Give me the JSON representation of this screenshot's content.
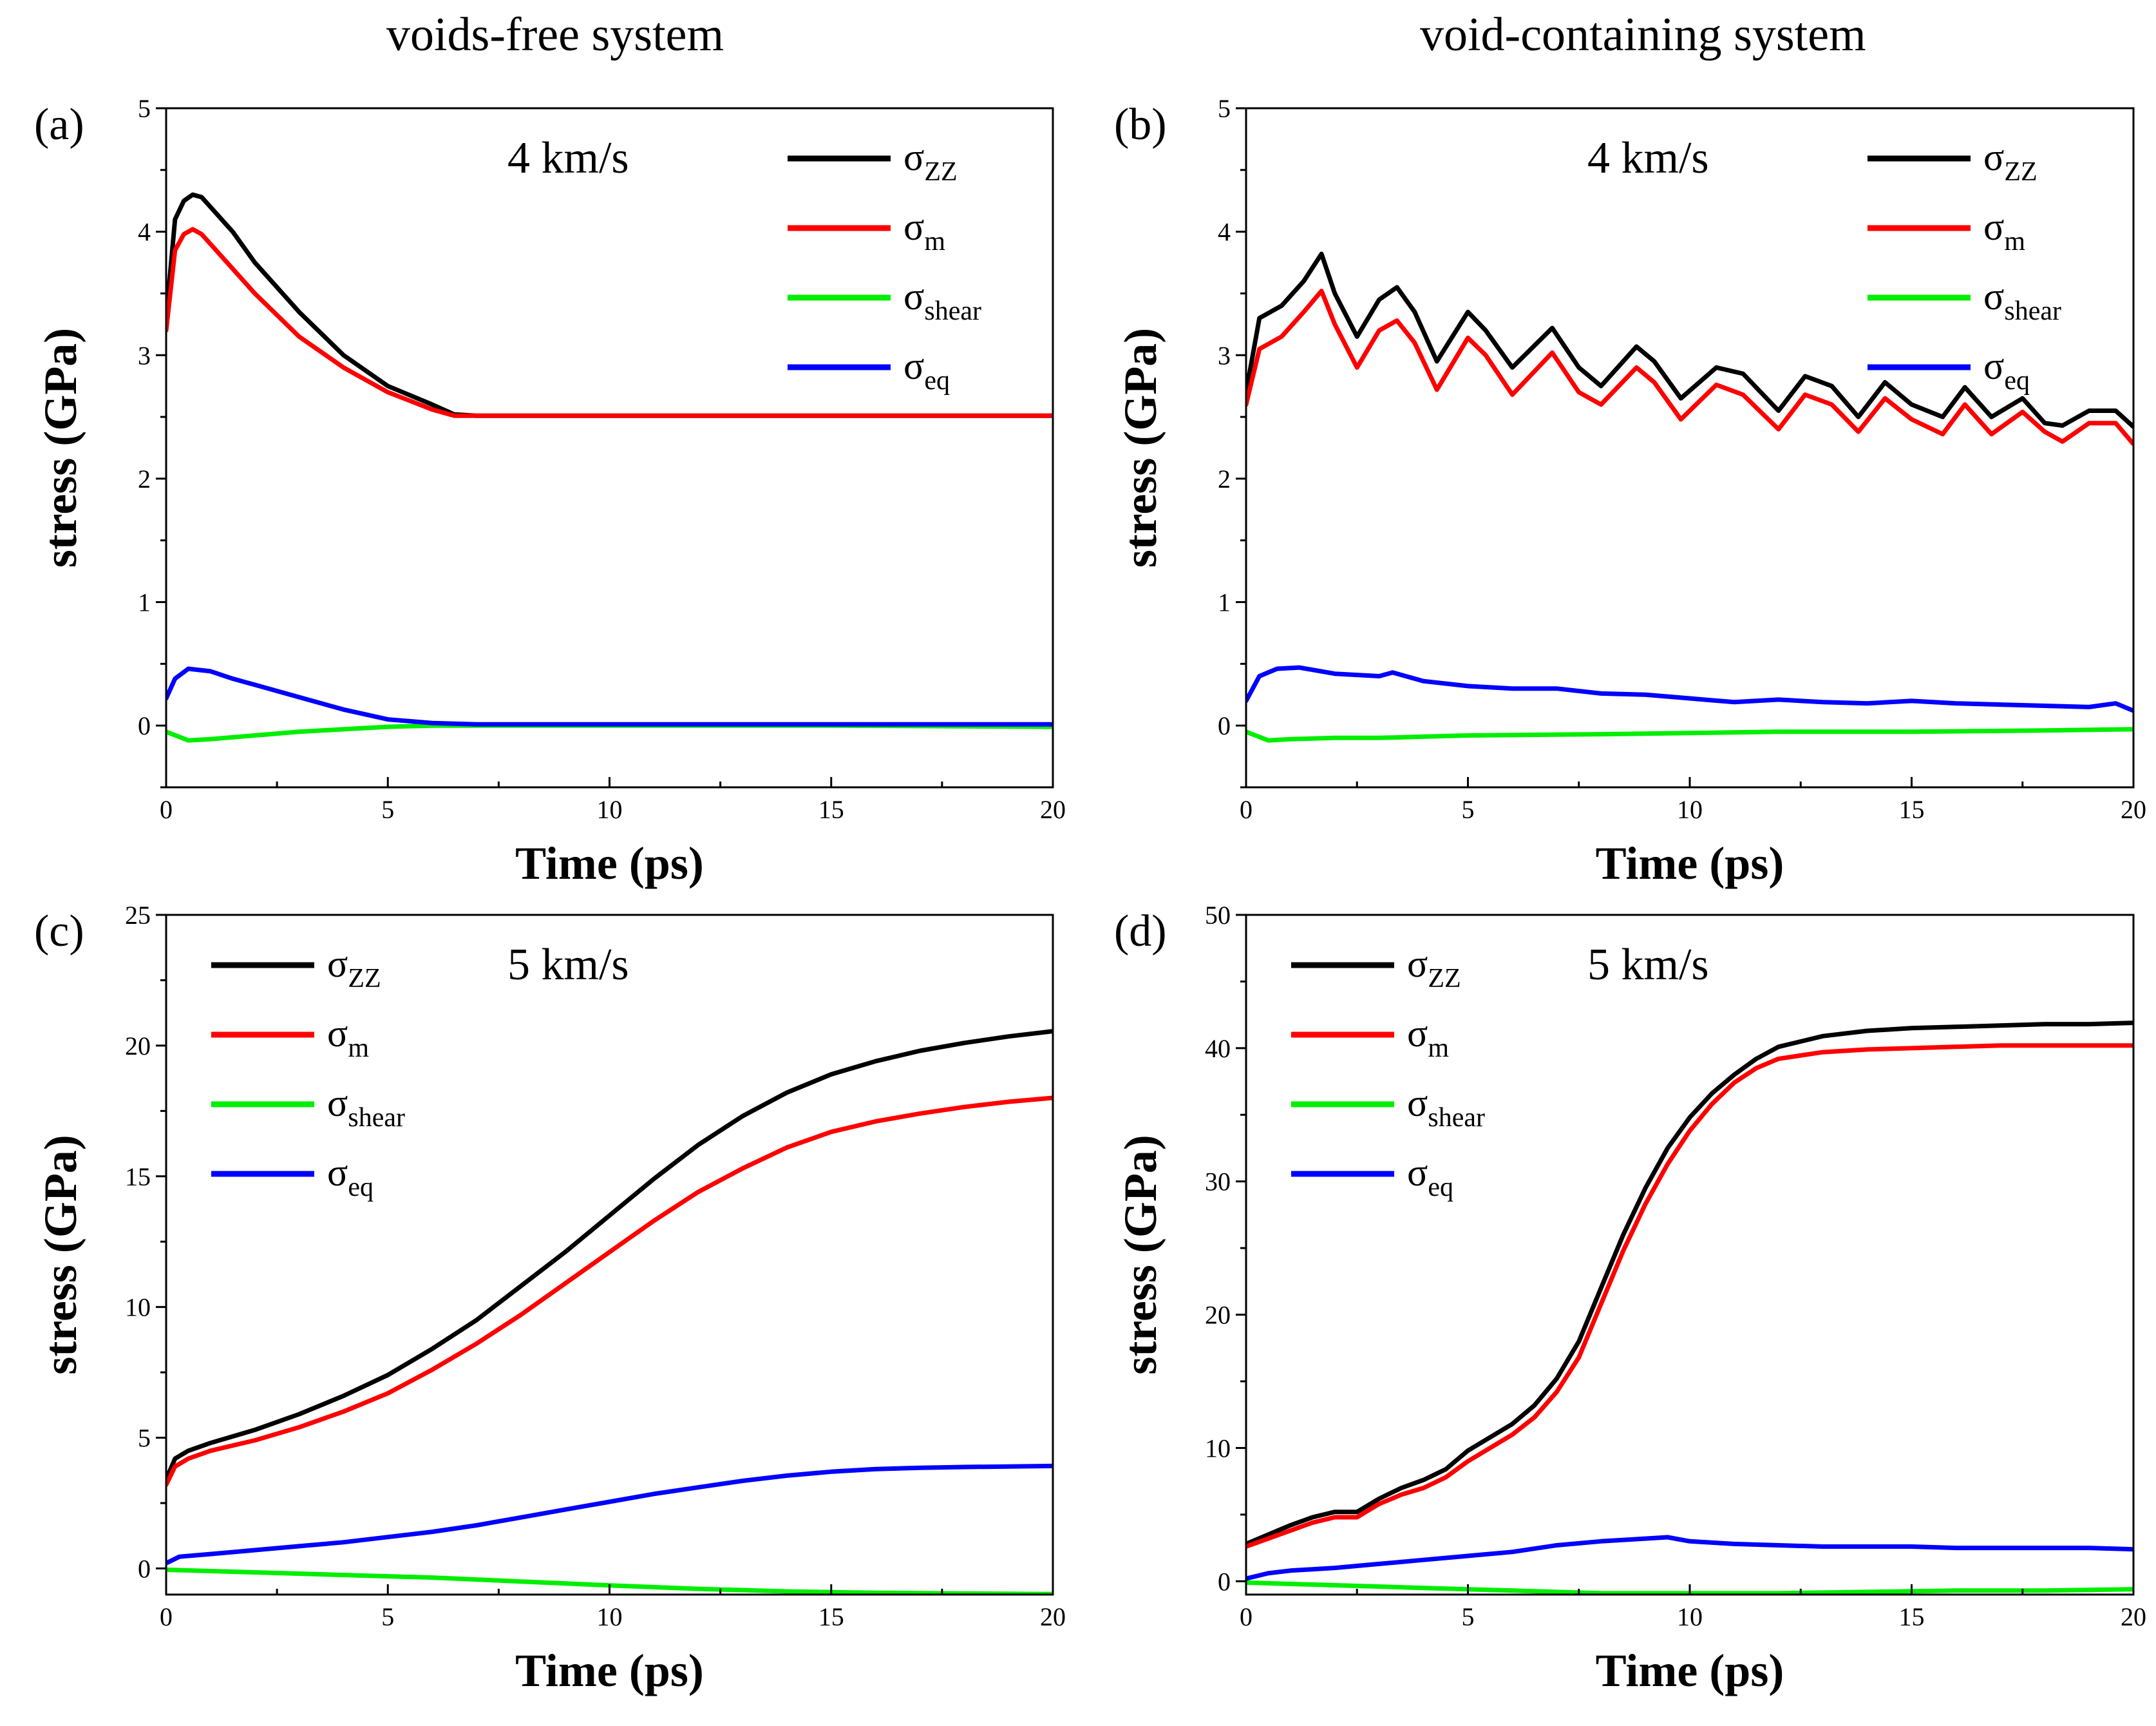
{
  "column_titles": [
    "voids-free system",
    "void-containing system"
  ],
  "chart_data": [
    {
      "type": "line",
      "panel_label": "(a)",
      "annotation": "4 km/s",
      "xlabel": "Time (ps)",
      "ylabel": "stress (GPa)",
      "xlim": [
        0,
        20
      ],
      "ylim": [
        -0.5,
        5
      ],
      "xticks": [
        0,
        5,
        10,
        15,
        20
      ],
      "yticks": [
        0,
        1,
        2,
        3,
        4,
        5
      ],
      "legend_position": "top-right",
      "series": [
        {
          "name": "σ",
          "subscript": "ZZ",
          "color": "#000000",
          "x": [
            0,
            0.2,
            0.4,
            0.6,
            0.8,
            1.0,
            1.5,
            2.0,
            3.0,
            4.0,
            5.0,
            6.0,
            6.5,
            7.0,
            10,
            15,
            20
          ],
          "y": [
            3.3,
            4.1,
            4.25,
            4.3,
            4.28,
            4.2,
            4.0,
            3.75,
            3.35,
            3.0,
            2.75,
            2.6,
            2.52,
            2.51,
            2.51,
            2.51,
            2.51
          ]
        },
        {
          "name": "σ",
          "subscript": "m",
          "color": "#ff0000",
          "x": [
            0,
            0.2,
            0.4,
            0.6,
            0.8,
            1.0,
            1.5,
            2.0,
            3.0,
            4.0,
            5.0,
            6.0,
            6.5,
            7.0,
            10,
            15,
            20
          ],
          "y": [
            3.2,
            3.85,
            3.98,
            4.02,
            3.98,
            3.9,
            3.7,
            3.5,
            3.15,
            2.9,
            2.7,
            2.56,
            2.51,
            2.51,
            2.51,
            2.51,
            2.51
          ]
        },
        {
          "name": "σ",
          "subscript": "shear",
          "color": "#00ee00",
          "x": [
            0,
            0.5,
            1,
            2,
            3,
            4,
            5,
            6,
            10,
            15,
            20
          ],
          "y": [
            -0.05,
            -0.12,
            -0.11,
            -0.08,
            -0.05,
            -0.03,
            -0.01,
            0.0,
            0.0,
            0.0,
            -0.01
          ]
        },
        {
          "name": "σ",
          "subscript": "eq",
          "color": "#0000ff",
          "x": [
            0,
            0.2,
            0.5,
            1.0,
            1.5,
            2,
            3,
            4,
            5,
            6,
            7,
            10,
            15,
            20
          ],
          "y": [
            0.22,
            0.38,
            0.46,
            0.44,
            0.38,
            0.33,
            0.23,
            0.13,
            0.05,
            0.02,
            0.01,
            0.01,
            0.01,
            0.01
          ]
        }
      ]
    },
    {
      "type": "line",
      "panel_label": "(b)",
      "annotation": "4 km/s",
      "xlabel": "Time (ps)",
      "ylabel": "stress (GPa)",
      "xlim": [
        0,
        20
      ],
      "ylim": [
        -0.5,
        5
      ],
      "xticks": [
        0,
        5,
        10,
        15,
        20
      ],
      "yticks": [
        0,
        1,
        2,
        3,
        4,
        5
      ],
      "legend_position": "top-right",
      "series": [
        {
          "name": "σ",
          "subscript": "ZZ",
          "color": "#000000",
          "x": [
            0,
            0.3,
            0.8,
            1.3,
            1.7,
            2.0,
            2.5,
            3.0,
            3.4,
            3.8,
            4.3,
            5.0,
            5.4,
            6.0,
            6.9,
            7.5,
            8.0,
            8.8,
            9.2,
            9.8,
            10.6,
            11.2,
            12.0,
            12.6,
            13.2,
            13.8,
            14.4,
            15.0,
            15.7,
            16.2,
            16.8,
            17.5,
            18.0,
            18.4,
            19.0,
            19.6,
            20.0
          ],
          "y": [
            2.7,
            3.3,
            3.4,
            3.6,
            3.82,
            3.5,
            3.15,
            3.45,
            3.55,
            3.35,
            2.95,
            3.35,
            3.2,
            2.9,
            3.22,
            2.9,
            2.75,
            3.07,
            2.95,
            2.65,
            2.9,
            2.85,
            2.55,
            2.83,
            2.75,
            2.5,
            2.78,
            2.6,
            2.5,
            2.74,
            2.5,
            2.65,
            2.45,
            2.43,
            2.55,
            2.55,
            2.42
          ]
        },
        {
          "name": "σ",
          "subscript": "m",
          "color": "#ff0000",
          "x": [
            0,
            0.3,
            0.8,
            1.3,
            1.7,
            2.0,
            2.5,
            3.0,
            3.4,
            3.8,
            4.3,
            5.0,
            5.4,
            6.0,
            6.9,
            7.5,
            8.0,
            8.8,
            9.2,
            9.8,
            10.6,
            11.2,
            12.0,
            12.6,
            13.2,
            13.8,
            14.4,
            15.0,
            15.7,
            16.2,
            16.8,
            17.5,
            18.0,
            18.4,
            19.0,
            19.6,
            20.0
          ],
          "y": [
            2.6,
            3.05,
            3.15,
            3.35,
            3.52,
            3.25,
            2.9,
            3.2,
            3.28,
            3.1,
            2.72,
            3.14,
            3.0,
            2.68,
            3.02,
            2.7,
            2.6,
            2.9,
            2.78,
            2.48,
            2.76,
            2.68,
            2.4,
            2.68,
            2.6,
            2.38,
            2.65,
            2.48,
            2.36,
            2.6,
            2.36,
            2.54,
            2.38,
            2.3,
            2.45,
            2.45,
            2.28
          ]
        },
        {
          "name": "σ",
          "subscript": "shear",
          "color": "#00ee00",
          "x": [
            0,
            0.5,
            1,
            2,
            3,
            4,
            5,
            8,
            10,
            12,
            15,
            18,
            20
          ],
          "y": [
            -0.05,
            -0.12,
            -0.11,
            -0.1,
            -0.1,
            -0.09,
            -0.08,
            -0.07,
            -0.06,
            -0.05,
            -0.05,
            -0.04,
            -0.03
          ]
        },
        {
          "name": "σ",
          "subscript": "eq",
          "color": "#0000ff",
          "x": [
            0,
            0.3,
            0.7,
            1.2,
            2,
            3,
            3.3,
            4,
            5,
            6,
            7,
            8,
            9,
            10,
            11,
            12,
            13,
            14,
            15,
            16,
            17,
            18,
            19,
            19.6,
            20
          ],
          "y": [
            0.2,
            0.4,
            0.46,
            0.47,
            0.42,
            0.4,
            0.43,
            0.36,
            0.32,
            0.3,
            0.3,
            0.26,
            0.25,
            0.22,
            0.19,
            0.21,
            0.19,
            0.18,
            0.2,
            0.18,
            0.17,
            0.16,
            0.15,
            0.18,
            0.12
          ]
        }
      ]
    },
    {
      "type": "line",
      "panel_label": "(c)",
      "annotation": "5 km/s",
      "xlabel": "Time (ps)",
      "ylabel": "stress (GPa)",
      "xlim": [
        0,
        20
      ],
      "ylim": [
        -1,
        25
      ],
      "xticks": [
        0,
        5,
        10,
        15,
        20
      ],
      "yticks": [
        0,
        5,
        10,
        15,
        20,
        25
      ],
      "legend_position": "top-left",
      "series": [
        {
          "name": "σ",
          "subscript": "ZZ",
          "color": "#000000",
          "x": [
            0,
            0.2,
            0.5,
            1,
            2,
            3,
            4,
            5,
            6,
            7,
            8,
            9,
            10,
            11,
            12,
            13,
            14,
            15,
            16,
            17,
            18,
            19,
            20
          ],
          "y": [
            3.4,
            4.2,
            4.5,
            4.8,
            5.3,
            5.9,
            6.6,
            7.4,
            8.4,
            9.5,
            10.8,
            12.1,
            13.5,
            14.9,
            16.2,
            17.3,
            18.2,
            18.9,
            19.4,
            19.8,
            20.1,
            20.35,
            20.55
          ]
        },
        {
          "name": "σ",
          "subscript": "m",
          "color": "#ff0000",
          "x": [
            0,
            0.2,
            0.5,
            1,
            2,
            3,
            4,
            5,
            6,
            7,
            8,
            9,
            10,
            11,
            12,
            13,
            14,
            15,
            16,
            17,
            18,
            19,
            20
          ],
          "y": [
            3.2,
            3.9,
            4.2,
            4.5,
            4.9,
            5.4,
            6.0,
            6.7,
            7.6,
            8.6,
            9.7,
            10.9,
            12.1,
            13.3,
            14.4,
            15.3,
            16.1,
            16.7,
            17.1,
            17.4,
            17.65,
            17.85,
            18.0
          ]
        },
        {
          "name": "σ",
          "subscript": "shear",
          "color": "#00ee00",
          "x": [
            0,
            2,
            4,
            6,
            8,
            10,
            12,
            14,
            16,
            18,
            20
          ],
          "y": [
            -0.05,
            -0.15,
            -0.25,
            -0.35,
            -0.5,
            -0.65,
            -0.78,
            -0.88,
            -0.93,
            -0.96,
            -0.98
          ]
        },
        {
          "name": "σ",
          "subscript": "eq",
          "color": "#0000ff",
          "x": [
            0,
            0.3,
            1,
            2,
            3,
            4,
            5,
            6,
            7,
            8,
            9,
            10,
            11,
            12,
            13,
            14,
            15,
            16,
            17,
            18,
            19,
            20
          ],
          "y": [
            0.2,
            0.45,
            0.55,
            0.7,
            0.85,
            1.0,
            1.2,
            1.4,
            1.65,
            1.95,
            2.25,
            2.55,
            2.85,
            3.1,
            3.35,
            3.55,
            3.7,
            3.8,
            3.85,
            3.88,
            3.9,
            3.92
          ]
        }
      ]
    },
    {
      "type": "line",
      "panel_label": "(d)",
      "annotation": "5 km/s",
      "xlabel": "Time (ps)",
      "ylabel": "stress (GPa)",
      "xlim": [
        0,
        20
      ],
      "ylim": [
        -1,
        50
      ],
      "xticks": [
        0,
        5,
        10,
        15,
        20
      ],
      "yticks": [
        0,
        10,
        20,
        30,
        40,
        50
      ],
      "legend_position": "top-left",
      "series": [
        {
          "name": "σ",
          "subscript": "ZZ",
          "color": "#000000",
          "x": [
            0,
            0.5,
            1,
            1.5,
            2,
            2.5,
            3,
            3.5,
            4,
            4.5,
            5,
            6,
            6.5,
            7,
            7.5,
            8,
            8.5,
            9,
            9.5,
            10,
            10.5,
            11,
            11.5,
            12,
            13,
            14,
            15,
            16,
            17,
            18,
            19,
            20
          ],
          "y": [
            2.8,
            3.5,
            4.2,
            4.8,
            5.2,
            5.2,
            6.2,
            7.0,
            7.6,
            8.4,
            9.8,
            11.8,
            13.2,
            15.2,
            18.0,
            22.0,
            26.0,
            29.5,
            32.5,
            34.8,
            36.6,
            38.0,
            39.2,
            40.1,
            40.9,
            41.3,
            41.5,
            41.6,
            41.7,
            41.8,
            41.8,
            41.9
          ]
        },
        {
          "name": "σ",
          "subscript": "m",
          "color": "#ff0000",
          "x": [
            0,
            0.5,
            1,
            1.5,
            2,
            2.5,
            3,
            3.5,
            4,
            4.5,
            5,
            6,
            6.5,
            7,
            7.5,
            8,
            8.5,
            9,
            9.5,
            10,
            10.5,
            11,
            11.5,
            12,
            13,
            14,
            15,
            16,
            17,
            18,
            19,
            20
          ],
          "y": [
            2.6,
            3.2,
            3.8,
            4.4,
            4.8,
            4.8,
            5.8,
            6.5,
            7.0,
            7.8,
            9.0,
            11.0,
            12.3,
            14.2,
            16.8,
            20.8,
            24.8,
            28.3,
            31.3,
            33.8,
            35.8,
            37.4,
            38.5,
            39.2,
            39.7,
            39.9,
            40.0,
            40.1,
            40.2,
            40.2,
            40.2,
            40.2
          ]
        },
        {
          "name": "σ",
          "subscript": "shear",
          "color": "#00ee00",
          "x": [
            0,
            2,
            4,
            6,
            8,
            10,
            12,
            14,
            16,
            18,
            20
          ],
          "y": [
            -0.1,
            -0.3,
            -0.5,
            -0.7,
            -0.9,
            -0.9,
            -0.9,
            -0.8,
            -0.7,
            -0.7,
            -0.6
          ]
        },
        {
          "name": "σ",
          "subscript": "eq",
          "color": "#0000ff",
          "x": [
            0,
            0.5,
            1,
            2,
            3,
            4,
            5,
            6,
            7,
            8,
            9,
            9.5,
            10,
            11,
            12,
            13,
            14,
            15,
            16,
            17,
            18,
            19,
            20
          ],
          "y": [
            0.2,
            0.6,
            0.8,
            1.0,
            1.3,
            1.6,
            1.9,
            2.2,
            2.7,
            3.0,
            3.2,
            3.3,
            3.0,
            2.8,
            2.7,
            2.6,
            2.6,
            2.6,
            2.5,
            2.5,
            2.5,
            2.5,
            2.4
          ]
        }
      ]
    }
  ]
}
